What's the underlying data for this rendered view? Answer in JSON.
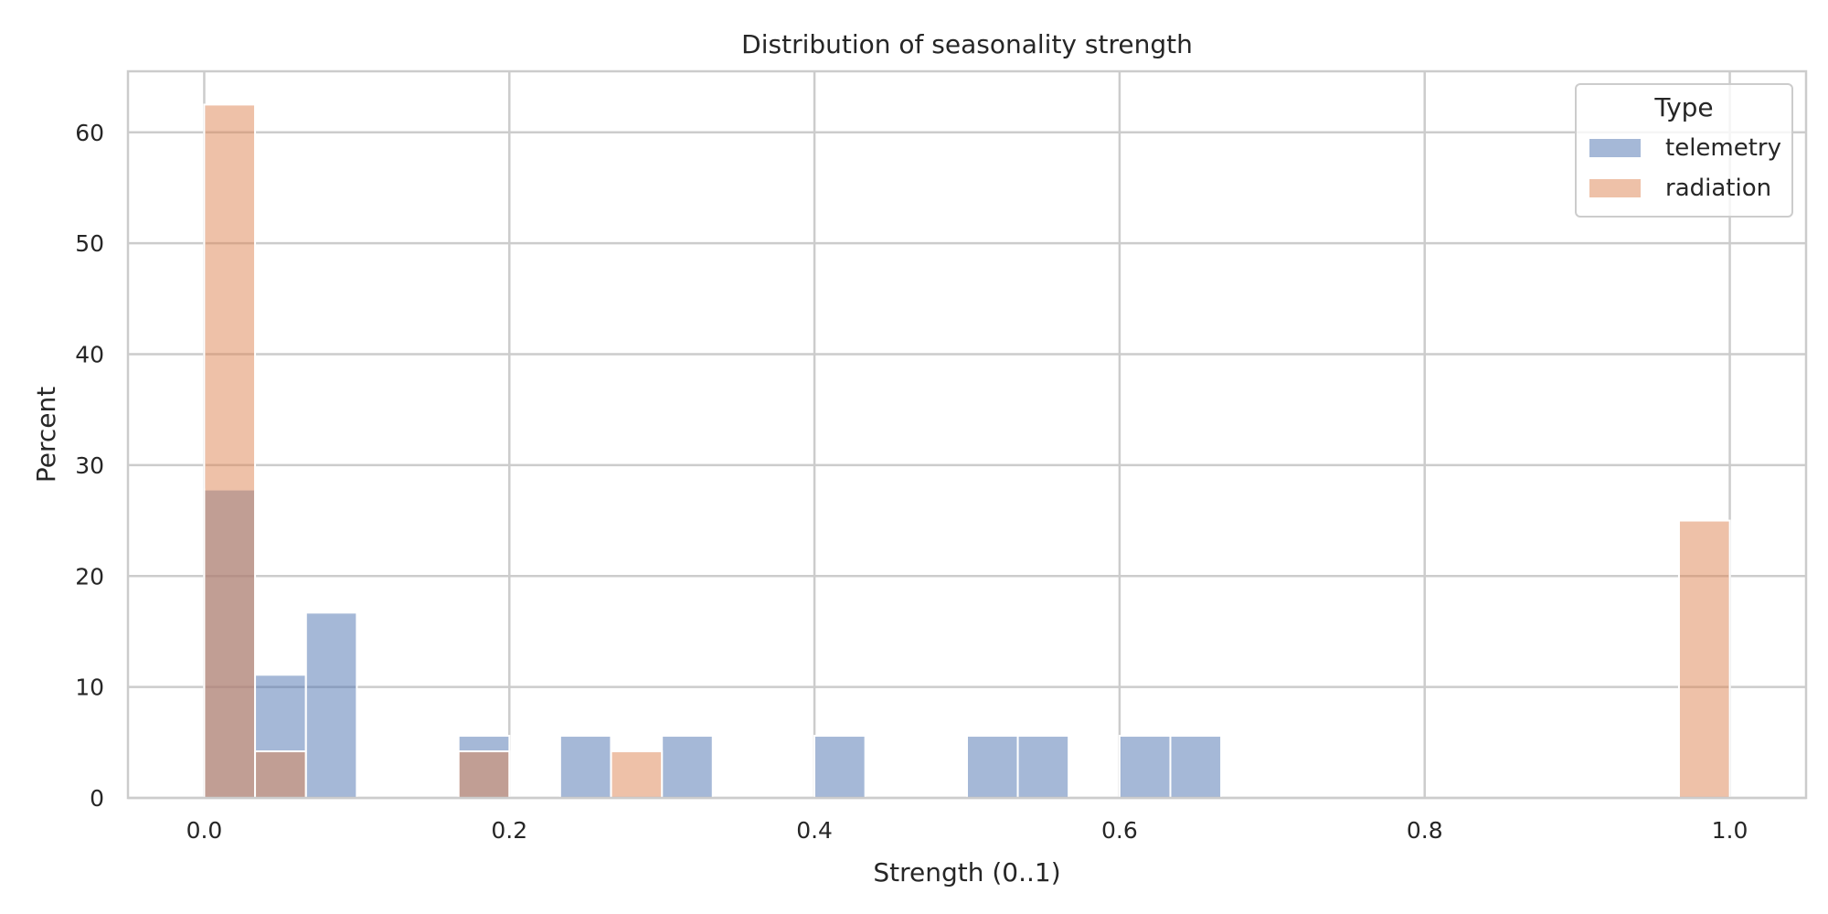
{
  "chart_data": {
    "type": "bar",
    "subtype": "histogram",
    "title": "Distribution of seasonality strength",
    "xlabel": "Strength (0..1)",
    "ylabel": "Percent",
    "xlim": [
      -0.05,
      1.05
    ],
    "ylim": [
      0,
      65.5
    ],
    "x_ticks": [
      "0.0",
      "0.2",
      "0.4",
      "0.6",
      "0.8",
      "1.0"
    ],
    "y_ticks": [
      "0",
      "10",
      "20",
      "30",
      "40",
      "50",
      "60"
    ],
    "grid": true,
    "bin_width": 0.0333,
    "legend": {
      "title": "Type",
      "placement": "top-right"
    },
    "series": [
      {
        "name": "telemetry",
        "color": "#4c72b0",
        "bins": [
          {
            "x0": 0.0,
            "value": 27.8
          },
          {
            "x0": 0.0333,
            "value": 11.1
          },
          {
            "x0": 0.0667,
            "value": 16.7
          },
          {
            "x0": 0.1667,
            "value": 5.6
          },
          {
            "x0": 0.2333,
            "value": 5.6
          },
          {
            "x0": 0.3,
            "value": 5.6
          },
          {
            "x0": 0.4,
            "value": 5.6
          },
          {
            "x0": 0.5,
            "value": 5.6
          },
          {
            "x0": 0.5333,
            "value": 5.6
          },
          {
            "x0": 0.6,
            "value": 5.6
          },
          {
            "x0": 0.6333,
            "value": 5.6
          }
        ]
      },
      {
        "name": "radiation",
        "color": "#dd8452",
        "bins": [
          {
            "x0": 0.0,
            "value": 62.5
          },
          {
            "x0": 0.0333,
            "value": 4.2
          },
          {
            "x0": 0.1667,
            "value": 4.2
          },
          {
            "x0": 0.2667,
            "value": 4.2
          },
          {
            "x0": 0.9667,
            "value": 25.0
          }
        ]
      }
    ]
  }
}
